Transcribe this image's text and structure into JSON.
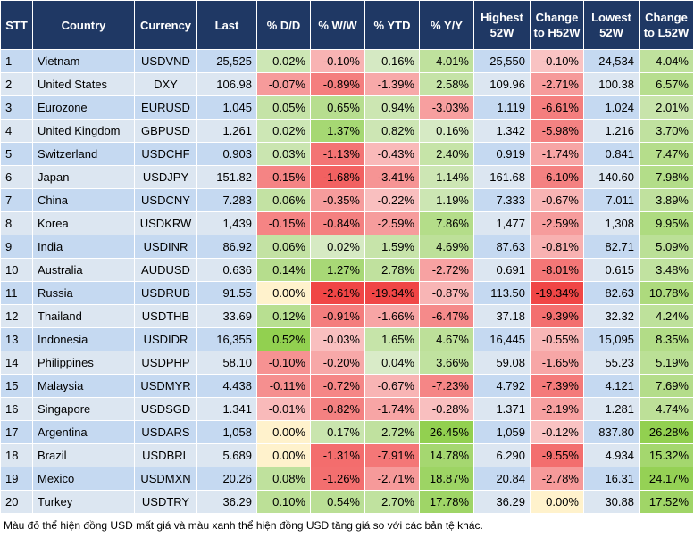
{
  "table": {
    "header": [
      "STT",
      "Country",
      "Currency",
      "Last",
      "% D/D",
      "% W/W",
      "% YTD",
      "% Y/Y",
      "Highest 52W",
      "Change to H52W",
      "Lowest 52W",
      "Change to L52W"
    ],
    "rows": [
      [
        "1",
        "Vietnam",
        "USDVND",
        "25,525",
        "0.02%",
        "-0.10%",
        "0.16%",
        "4.01%",
        "25,550",
        "-0.10%",
        "24,534",
        "4.04%"
      ],
      [
        "2",
        "United States",
        "DXY",
        "106.98",
        "-0.07%",
        "-0.89%",
        "-1.39%",
        "2.58%",
        "109.96",
        "-2.71%",
        "100.38",
        "6.57%"
      ],
      [
        "3",
        "Eurozone",
        "EURUSD",
        "1.045",
        "0.05%",
        "0.65%",
        "0.94%",
        "-3.03%",
        "1.119",
        "-6.61%",
        "1.024",
        "2.01%"
      ],
      [
        "4",
        "United Kingdom",
        "GBPUSD",
        "1.261",
        "0.02%",
        "1.37%",
        "0.82%",
        "0.16%",
        "1.342",
        "-5.98%",
        "1.216",
        "3.70%"
      ],
      [
        "5",
        "Switzerland",
        "USDCHF",
        "0.903",
        "0.03%",
        "-1.13%",
        "-0.43%",
        "2.40%",
        "0.919",
        "-1.74%",
        "0.841",
        "7.47%"
      ],
      [
        "6",
        "Japan",
        "USDJPY",
        "151.82",
        "-0.15%",
        "-1.68%",
        "-3.41%",
        "1.14%",
        "161.68",
        "-6.10%",
        "140.60",
        "7.98%"
      ],
      [
        "7",
        "China",
        "USDCNY",
        "7.283",
        "0.06%",
        "-0.35%",
        "-0.22%",
        "1.19%",
        "7.333",
        "-0.67%",
        "7.011",
        "3.89%"
      ],
      [
        "8",
        "Korea",
        "USDKRW",
        "1,439",
        "-0.15%",
        "-0.84%",
        "-2.59%",
        "7.86%",
        "1,477",
        "-2.59%",
        "1,308",
        "9.95%"
      ],
      [
        "9",
        "India",
        "USDINR",
        "86.92",
        "0.06%",
        "0.02%",
        "1.59%",
        "4.69%",
        "87.63",
        "-0.81%",
        "82.71",
        "5.09%"
      ],
      [
        "10",
        "Australia",
        "AUDUSD",
        "0.636",
        "0.14%",
        "1.27%",
        "2.78%",
        "-2.72%",
        "0.691",
        "-8.01%",
        "0.615",
        "3.48%"
      ],
      [
        "11",
        "Russia",
        "USDRUB",
        "91.55",
        "0.00%",
        "-2.61%",
        "-19.34%",
        "-0.87%",
        "113.50",
        "-19.34%",
        "82.63",
        "10.78%"
      ],
      [
        "12",
        "Thailand",
        "USDTHB",
        "33.69",
        "0.12%",
        "-0.91%",
        "-1.66%",
        "-6.47%",
        "37.18",
        "-9.39%",
        "32.32",
        "4.24%"
      ],
      [
        "13",
        "Indonesia",
        "USDIDR",
        "16,355",
        "0.52%",
        "-0.03%",
        "1.65%",
        "4.67%",
        "16,445",
        "-0.55%",
        "15,095",
        "8.35%"
      ],
      [
        "14",
        "Philippines",
        "USDPHP",
        "58.10",
        "-0.10%",
        "-0.20%",
        "0.04%",
        "3.66%",
        "59.08",
        "-1.65%",
        "55.23",
        "5.19%"
      ],
      [
        "15",
        "Malaysia",
        "USDMYR",
        "4.438",
        "-0.11%",
        "-0.72%",
        "-0.67%",
        "-7.23%",
        "4.792",
        "-7.39%",
        "4.121",
        "7.69%"
      ],
      [
        "16",
        "Singapore",
        "USDSGD",
        "1.341",
        "-0.01%",
        "-0.82%",
        "-1.74%",
        "-0.28%",
        "1.371",
        "-2.19%",
        "1.281",
        "4.74%"
      ],
      [
        "17",
        "Argentina",
        "USDARS",
        "1,058",
        "0.00%",
        "0.17%",
        "2.72%",
        "26.45%",
        "1,059",
        "-0.12%",
        "837.80",
        "26.28%"
      ],
      [
        "18",
        "Brazil",
        "USDBRL",
        "5.689",
        "0.00%",
        "-1.31%",
        "-7.91%",
        "14.78%",
        "6.290",
        "-9.55%",
        "4.934",
        "15.32%"
      ],
      [
        "19",
        "Mexico",
        "USDMXN",
        "20.26",
        "0.08%",
        "-1.26%",
        "-2.71%",
        "18.87%",
        "20.84",
        "-2.78%",
        "16.31",
        "24.17%"
      ],
      [
        "20",
        "Turkey",
        "USDTRY",
        "36.29",
        "0.10%",
        "0.54%",
        "2.70%",
        "17.78%",
        "36.29",
        "0.00%",
        "30.88",
        "17.52%"
      ]
    ]
  },
  "footnote": "Màu đỏ thể hiện đồng USD mất giá và màu xanh thể hiện đồng USD tăng giá so với các bản tệ khác."
}
